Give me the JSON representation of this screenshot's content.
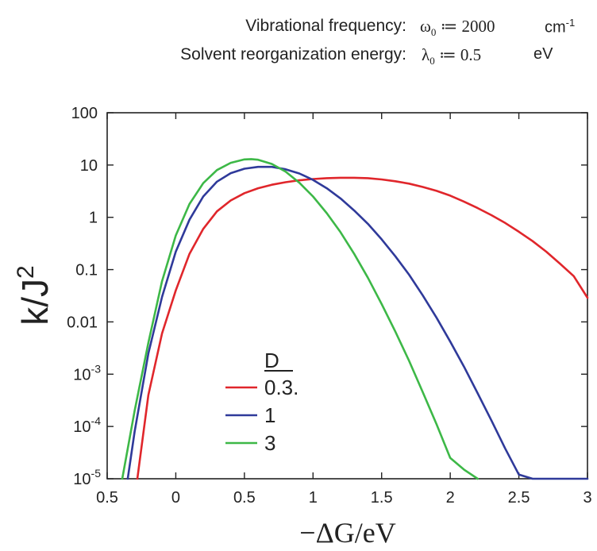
{
  "header": {
    "row1": {
      "label": "Vibrational frequency:",
      "symbol": "ω",
      "sub": "0",
      "assign": "≔ 2000",
      "unit": "cm",
      "unit_sup": "-1"
    },
    "row2": {
      "label": "Solvent reorganization energy:",
      "symbol": "λ",
      "sub": "0",
      "assign": "≔ 0.5",
      "unit": "eV"
    }
  },
  "chart_data": {
    "type": "line",
    "xlabel": "−ΔG/eV",
    "ylabel": "k/J",
    "ylabel_sup": "2",
    "xlim": [
      -0.5,
      3
    ],
    "ylim_log10": [
      -5,
      2
    ],
    "yscale": "log",
    "x_ticks": [
      {
        "v": -0.5,
        "label": "0.5"
      },
      {
        "v": 0,
        "label": "0"
      },
      {
        "v": 0.5,
        "label": "0.5"
      },
      {
        "v": 1,
        "label": "1"
      },
      {
        "v": 1.5,
        "label": "1.5"
      },
      {
        "v": 2,
        "label": "2"
      },
      {
        "v": 2.5,
        "label": "2.5"
      },
      {
        "v": 3,
        "label": "3"
      }
    ],
    "y_ticks": [
      {
        "exp": 2,
        "label": "100"
      },
      {
        "exp": 1,
        "label": "10"
      },
      {
        "exp": 0,
        "label": "1"
      },
      {
        "exp": -1,
        "label": "0.1"
      },
      {
        "exp": -2,
        "label": "0.01"
      },
      {
        "exp": -3,
        "base": "10",
        "sup": "-3"
      },
      {
        "exp": -4,
        "base": "10",
        "sup": "-4"
      },
      {
        "exp": -5,
        "base": "10",
        "sup": "-5"
      }
    ],
    "legend": {
      "title": "D",
      "placement": "lower-left"
    },
    "series": [
      {
        "name": "0.3.",
        "color": "#e0262b",
        "points": [
          [
            -0.28,
            1e-05
          ],
          [
            -0.2,
            0.0004
          ],
          [
            -0.1,
            0.006
          ],
          [
            0,
            0.04
          ],
          [
            0.1,
            0.2
          ],
          [
            0.2,
            0.6
          ],
          [
            0.3,
            1.3
          ],
          [
            0.4,
            2.1
          ],
          [
            0.5,
            2.9
          ],
          [
            0.6,
            3.6
          ],
          [
            0.7,
            4.2
          ],
          [
            0.8,
            4.7
          ],
          [
            0.9,
            5.1
          ],
          [
            1.0,
            5.4
          ],
          [
            1.1,
            5.6
          ],
          [
            1.2,
            5.7
          ],
          [
            1.3,
            5.7
          ],
          [
            1.4,
            5.6
          ],
          [
            1.5,
            5.3
          ],
          [
            1.6,
            4.9
          ],
          [
            1.7,
            4.4
          ],
          [
            1.8,
            3.8
          ],
          [
            1.9,
            3.2
          ],
          [
            2.0,
            2.6
          ],
          [
            2.1,
            2.0
          ],
          [
            2.2,
            1.5
          ],
          [
            2.3,
            1.1
          ],
          [
            2.4,
            0.78
          ],
          [
            2.5,
            0.53
          ],
          [
            2.6,
            0.35
          ],
          [
            2.7,
            0.22
          ],
          [
            2.8,
            0.13
          ],
          [
            2.9,
            0.075
          ],
          [
            3.0,
            0.029
          ]
        ]
      },
      {
        "name": "1",
        "color": "#2f3a9a",
        "points": [
          [
            -0.35,
            1e-05
          ],
          [
            -0.3,
            8e-05
          ],
          [
            -0.2,
            0.0025
          ],
          [
            -0.1,
            0.03
          ],
          [
            0,
            0.22
          ],
          [
            0.1,
            0.9
          ],
          [
            0.2,
            2.5
          ],
          [
            0.3,
            4.8
          ],
          [
            0.4,
            7.0
          ],
          [
            0.5,
            8.5
          ],
          [
            0.6,
            9.2
          ],
          [
            0.7,
            9.2
          ],
          [
            0.8,
            8.3
          ],
          [
            0.9,
            6.9
          ],
          [
            1.0,
            5.2
          ],
          [
            1.1,
            3.6
          ],
          [
            1.2,
            2.3
          ],
          [
            1.3,
            1.35
          ],
          [
            1.4,
            0.75
          ],
          [
            1.5,
            0.38
          ],
          [
            1.6,
            0.18
          ],
          [
            1.7,
            0.08
          ],
          [
            1.8,
            0.032
          ],
          [
            1.9,
            0.012
          ],
          [
            2.0,
            0.0042
          ],
          [
            2.1,
            0.0014
          ],
          [
            2.2,
            0.00043
          ],
          [
            2.3,
            0.00013
          ],
          [
            2.4,
            3.8e-05
          ],
          [
            2.5,
            1.2e-05
          ],
          [
            2.6,
            1e-05
          ],
          [
            3.0,
            1e-05
          ]
        ]
      },
      {
        "name": "3",
        "color": "#3db847",
        "points": [
          [
            -0.39,
            1e-05
          ],
          [
            -0.3,
            0.0002
          ],
          [
            -0.2,
            0.004
          ],
          [
            -0.1,
            0.06
          ],
          [
            0,
            0.45
          ],
          [
            0.1,
            1.8
          ],
          [
            0.2,
            4.5
          ],
          [
            0.3,
            8.0
          ],
          [
            0.4,
            11.0
          ],
          [
            0.5,
            12.8
          ],
          [
            0.55,
            13.0
          ],
          [
            0.6,
            12.6
          ],
          [
            0.7,
            10.5
          ],
          [
            0.8,
            7.5
          ],
          [
            0.9,
            4.6
          ],
          [
            1.0,
            2.5
          ],
          [
            1.1,
            1.2
          ],
          [
            1.2,
            0.52
          ],
          [
            1.3,
            0.2
          ],
          [
            1.4,
            0.07
          ],
          [
            1.5,
            0.022
          ],
          [
            1.6,
            0.0065
          ],
          [
            1.7,
            0.0018
          ],
          [
            1.8,
            0.00045
          ],
          [
            1.9,
            0.00011
          ],
          [
            2.0,
            2.5e-05
          ],
          [
            2.1,
            1.5e-05
          ],
          [
            2.2,
            1e-05
          ]
        ]
      }
    ]
  }
}
